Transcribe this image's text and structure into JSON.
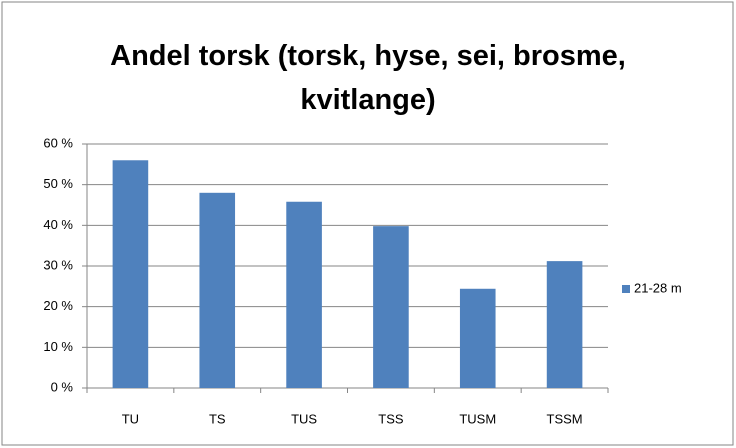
{
  "chart_data": {
    "type": "bar",
    "title": "Andel torsk (torsk, hyse, sei, brosme, kvitlange)",
    "categories": [
      "TU",
      "TS",
      "TUS",
      "TSS",
      "TUSM",
      "TSSM"
    ],
    "series": [
      {
        "name": "21-28 m",
        "color": "#4f81bd",
        "values": [
          56,
          48,
          45.8,
          39.8,
          24.4,
          31.2
        ]
      }
    ],
    "ylim": [
      0,
      60
    ],
    "yticks": [
      {
        "value": 0,
        "label": "0 %"
      },
      {
        "value": 10,
        "label": "10 %"
      },
      {
        "value": 20,
        "label": "20 %"
      },
      {
        "value": 30,
        "label": "30 %"
      },
      {
        "value": 40,
        "label": "40 %"
      },
      {
        "value": 50,
        "label": "50 %"
      },
      {
        "value": 60,
        "label": "60 %"
      }
    ],
    "grid": true,
    "legend": "right"
  }
}
